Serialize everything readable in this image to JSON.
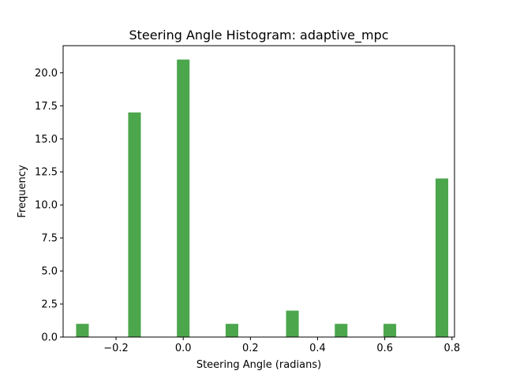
{
  "chart_data": {
    "type": "bar",
    "title": "Steering Angle Histogram: adaptive_mpc",
    "xlabel": "Steering Angle (radians)",
    "ylabel": "Frequency",
    "xlim": [
      -0.3575,
      0.8075
    ],
    "ylim": [
      0,
      22.05
    ],
    "xticks": [
      -0.2,
      0.0,
      0.2,
      0.4,
      0.6,
      0.8
    ],
    "xtick_labels": [
      "−0.2",
      "0.0",
      "0.2",
      "0.4",
      "0.6",
      "0.8"
    ],
    "yticks": [
      0,
      2.5,
      5,
      7.5,
      10,
      12.5,
      15,
      17.5,
      20
    ],
    "ytick_labels": [
      "0.0",
      "2.5",
      "5.0",
      "7.5",
      "10.0",
      "12.5",
      "15.0",
      "17.5",
      "20.0"
    ],
    "bin_width": 0.0377,
    "bins": [
      {
        "x": -0.3,
        "count": 1
      },
      {
        "x": -0.145,
        "count": 17
      },
      {
        "x": 0.0,
        "count": 21
      },
      {
        "x": 0.145,
        "count": 1
      },
      {
        "x": 0.325,
        "count": 2
      },
      {
        "x": 0.47,
        "count": 1
      },
      {
        "x": 0.615,
        "count": 1
      },
      {
        "x": 0.77,
        "count": 12
      }
    ],
    "bar_color": "#4ca64c",
    "grid": false,
    "legend": "none"
  }
}
